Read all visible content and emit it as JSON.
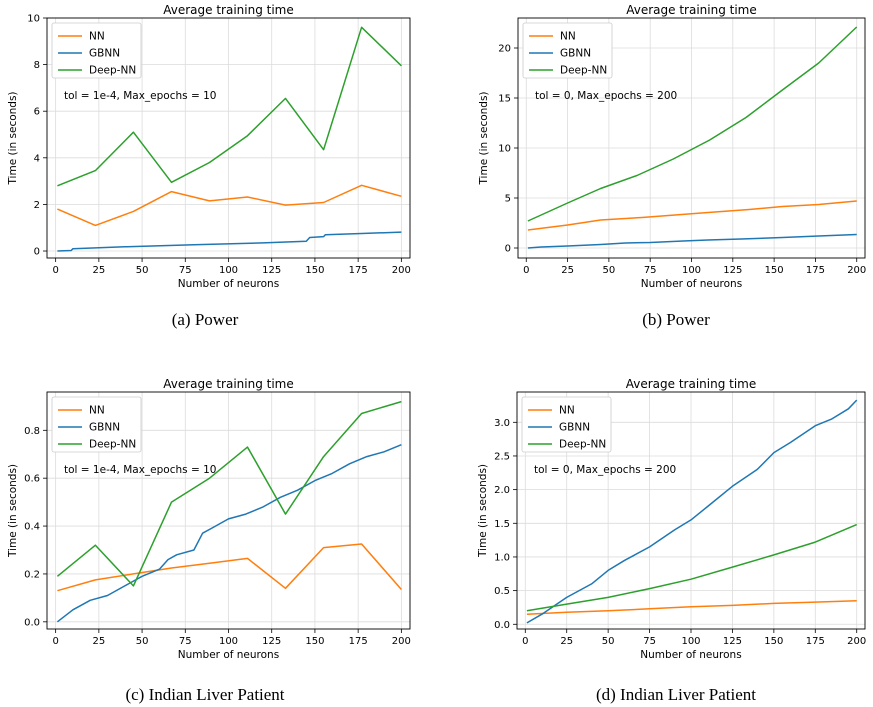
{
  "chart_data": [
    {
      "type": "line",
      "title": "Average training time",
      "xlabel": "Number of neurons",
      "ylabel": "Time (in seconds)",
      "caption": "(a) Power",
      "annotation": "tol = 1e-4, Max_epochs = 10",
      "xlim": [
        -5,
        205
      ],
      "ylim": [
        -0.3,
        10
      ],
      "xticks": [
        0,
        25,
        50,
        75,
        100,
        125,
        150,
        175,
        200
      ],
      "yticks": [
        0,
        2,
        4,
        6,
        8,
        10
      ],
      "ytick_labels": [
        "0",
        "2",
        "4",
        "6",
        "8",
        "10"
      ],
      "grid": true,
      "legend_position": "top-left",
      "series": [
        {
          "name": "NN",
          "color": "#ff7f0e",
          "x": [
            1,
            23,
            45,
            67,
            89,
            111,
            133,
            155,
            177,
            200
          ],
          "y": [
            1.8,
            1.1,
            1.7,
            2.55,
            2.15,
            2.32,
            1.97,
            2.08,
            2.82,
            2.35
          ]
        },
        {
          "name": "GBNN",
          "color": "#1f77b4",
          "x": [
            1,
            9,
            10,
            40,
            80,
            120,
            145,
            147,
            155,
            156,
            177,
            200
          ],
          "y": [
            0,
            0.02,
            0.1,
            0.18,
            0.27,
            0.35,
            0.42,
            0.58,
            0.62,
            0.7,
            0.75,
            0.81
          ]
        },
        {
          "name": "Deep-NN",
          "color": "#2ca02c",
          "x": [
            1,
            23,
            45,
            67,
            89,
            111,
            133,
            155,
            177,
            200
          ],
          "y": [
            2.8,
            3.45,
            5.1,
            2.95,
            3.8,
            4.95,
            6.55,
            4.35,
            9.6,
            7.95
          ]
        }
      ]
    },
    {
      "type": "line",
      "title": "Average training time",
      "xlabel": "Number of neurons",
      "ylabel": "Time (in seconds)",
      "caption": "(b) Power",
      "annotation": "tol = 0, Max_epochs = 200",
      "xlim": [
        -5,
        205
      ],
      "ylim": [
        -1,
        23
      ],
      "xticks": [
        0,
        25,
        50,
        75,
        100,
        125,
        150,
        175,
        200
      ],
      "yticks": [
        0,
        5,
        10,
        15,
        20
      ],
      "ytick_labels": [
        "0",
        "5",
        "10",
        "15",
        "20"
      ],
      "grid": true,
      "legend_position": "top-left",
      "series": [
        {
          "name": "NN",
          "color": "#ff7f0e",
          "x": [
            1,
            25,
            45,
            70,
            90,
            110,
            135,
            155,
            177,
            200
          ],
          "y": [
            1.8,
            2.3,
            2.8,
            3.05,
            3.3,
            3.55,
            3.85,
            4.15,
            4.35,
            4.7
          ]
        },
        {
          "name": "GBNN",
          "color": "#1f77b4",
          "x": [
            1,
            9,
            25,
            45,
            60,
            75,
            95,
            110,
            130,
            155,
            177,
            200
          ],
          "y": [
            0,
            0.1,
            0.2,
            0.35,
            0.5,
            0.55,
            0.7,
            0.8,
            0.9,
            1.05,
            1.2,
            1.35
          ]
        },
        {
          "name": "Deep-NN",
          "color": "#2ca02c",
          "x": [
            1,
            25,
            45,
            67,
            89,
            111,
            133,
            155,
            177,
            200
          ],
          "y": [
            2.7,
            4.5,
            5.95,
            7.25,
            8.9,
            10.8,
            13.05,
            15.8,
            18.5,
            22.1
          ]
        }
      ]
    },
    {
      "type": "line",
      "title": "Average training time",
      "xlabel": "Number of neurons",
      "ylabel": "Time (in seconds)",
      "caption": "(c) Indian Liver Patient",
      "annotation": "tol = 1e-4, Max_epochs = 10",
      "xlim": [
        -5,
        205
      ],
      "ylim": [
        -0.03,
        0.96
      ],
      "xticks": [
        0,
        25,
        50,
        75,
        100,
        125,
        150,
        175,
        200
      ],
      "yticks": [
        0,
        0.2,
        0.4,
        0.6,
        0.8
      ],
      "ytick_labels": [
        "0.0",
        "0.2",
        "0.4",
        "0.6",
        "0.8"
      ],
      "grid": true,
      "legend_position": "top-left",
      "series": [
        {
          "name": "NN",
          "color": "#ff7f0e",
          "x": [
            1,
            23,
            45,
            67,
            89,
            111,
            133,
            155,
            177,
            200
          ],
          "y": [
            0.13,
            0.175,
            0.2,
            0.225,
            0.245,
            0.265,
            0.14,
            0.31,
            0.325,
            0.135
          ]
        },
        {
          "name": "GBNN",
          "color": "#1f77b4",
          "x": [
            1,
            10,
            20,
            30,
            40,
            45,
            50,
            60,
            65,
            70,
            80,
            85,
            90,
            100,
            110,
            120,
            130,
            140,
            150,
            160,
            170,
            180,
            190,
            200
          ],
          "y": [
            0,
            0.05,
            0.09,
            0.11,
            0.15,
            0.17,
            0.19,
            0.22,
            0.26,
            0.28,
            0.3,
            0.37,
            0.39,
            0.43,
            0.45,
            0.48,
            0.52,
            0.55,
            0.59,
            0.62,
            0.66,
            0.69,
            0.71,
            0.74
          ]
        },
        {
          "name": "Deep-NN",
          "color": "#2ca02c",
          "x": [
            1,
            23,
            45,
            67,
            89,
            111,
            133,
            155,
            177,
            200
          ],
          "y": [
            0.19,
            0.32,
            0.15,
            0.5,
            0.6,
            0.73,
            0.45,
            0.69,
            0.87,
            0.92
          ]
        }
      ]
    },
    {
      "type": "line",
      "title": "Average training time",
      "xlabel": "Number of neurons",
      "ylabel": "Time (in seconds)",
      "caption": "(d) Indian Liver Patient",
      "annotation": "tol = 0, Max_epochs = 200",
      "xlim": [
        -5,
        205
      ],
      "ylim": [
        -0.07,
        3.45
      ],
      "xticks": [
        0,
        25,
        50,
        75,
        100,
        125,
        150,
        175,
        200
      ],
      "yticks": [
        0,
        0.5,
        1,
        1.5,
        2,
        2.5,
        3
      ],
      "ytick_labels": [
        "0.0",
        "0.5",
        "1.0",
        "1.5",
        "2.0",
        "2.5",
        "3.0"
      ],
      "grid": true,
      "legend_position": "top-left",
      "series": [
        {
          "name": "NN",
          "color": "#ff7f0e",
          "x": [
            1,
            25,
            50,
            75,
            100,
            125,
            150,
            175,
            200
          ],
          "y": [
            0.15,
            0.18,
            0.2,
            0.23,
            0.26,
            0.28,
            0.31,
            0.33,
            0.35
          ]
        },
        {
          "name": "GBNN",
          "color": "#1f77b4",
          "x": [
            1,
            10,
            25,
            40,
            50,
            60,
            75,
            90,
            100,
            110,
            125,
            140,
            150,
            160,
            175,
            185,
            195,
            200
          ],
          "y": [
            0.02,
            0.15,
            0.4,
            0.6,
            0.8,
            0.95,
            1.15,
            1.4,
            1.55,
            1.75,
            2.05,
            2.3,
            2.55,
            2.7,
            2.95,
            3.05,
            3.2,
            3.33
          ]
        },
        {
          "name": "Deep-NN",
          "color": "#2ca02c",
          "x": [
            1,
            25,
            50,
            75,
            100,
            125,
            150,
            175,
            200
          ],
          "y": [
            0.2,
            0.3,
            0.4,
            0.53,
            0.67,
            0.85,
            1.03,
            1.22,
            1.48
          ]
        }
      ]
    }
  ]
}
